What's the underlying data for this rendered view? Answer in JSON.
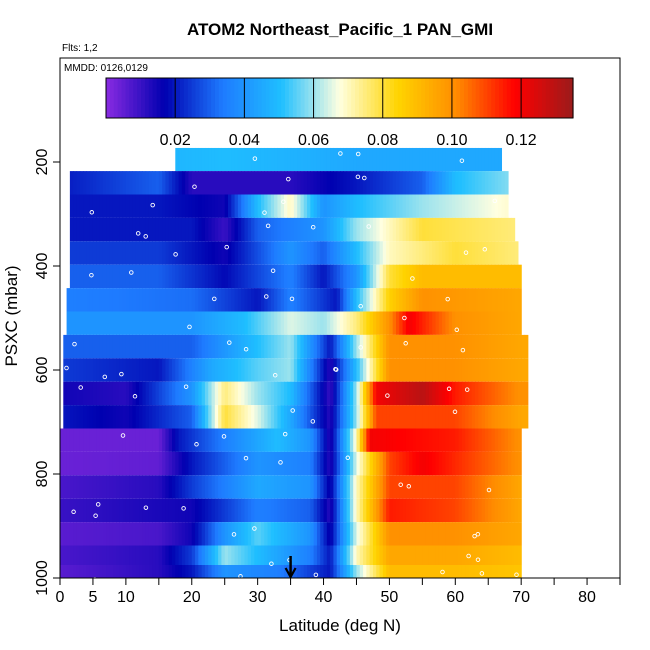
{
  "chart_data": {
    "type": "heatmap",
    "title": "ATOM2 Northeast_Pacific_1 PAN_GMI",
    "flights_label": "Flts: 1,2",
    "dates_label": "MMDD: 0126,0129",
    "xlabel": "Latitude (deg N)",
    "ylabel": "PSXC (mbar)",
    "xlim": [
      0,
      85
    ],
    "ylim": [
      1000,
      0
    ],
    "x_tick_labels": [
      "0",
      "5",
      "10",
      "20",
      "30",
      "40",
      "50",
      "60",
      "70",
      "80"
    ],
    "y_tick_labels": [
      "200",
      "400",
      "600",
      "800",
      "1000"
    ],
    "colorbar": {
      "range": [
        0,
        0.135
      ],
      "tick_labels": [
        "0.02",
        "0.04",
        "0.06",
        "0.08",
        "0.10",
        "0.12"
      ],
      "colors": [
        "#8a2be2",
        "#0000b0",
        "#1e7bff",
        "#1fbfff",
        "#ffffe0",
        "#ffd400",
        "#ff8c00",
        "#ff0000",
        "#9b1b1b"
      ]
    },
    "marker": {
      "latitude": 35,
      "symbol": "arrow-down"
    },
    "pressure_bands": [
      {
        "p": 195,
        "lat_range": [
          17.5,
          67
        ],
        "profile": [
          [
            0,
            0.045
          ],
          [
            25,
            0.05
          ],
          [
            45,
            0.045
          ],
          [
            60,
            0.045
          ],
          [
            70,
            0.045
          ]
        ]
      },
      {
        "p": 240,
        "lat_range": [
          1.5,
          68
        ],
        "profile": [
          [
            0,
            0.02
          ],
          [
            15,
            0.03
          ],
          [
            20,
            0.012
          ],
          [
            35,
            0.012
          ],
          [
            45,
            0.02
          ],
          [
            55,
            0.03
          ],
          [
            60,
            0.05
          ],
          [
            70,
            0.06
          ]
        ]
      },
      {
        "p": 285,
        "lat_range": [
          1.5,
          68
        ],
        "profile": [
          [
            0,
            0.02
          ],
          [
            15,
            0.02
          ],
          [
            25,
            0.015
          ],
          [
            30,
            0.05
          ],
          [
            35,
            0.07
          ],
          [
            40,
            0.04
          ],
          [
            45,
            0.05
          ],
          [
            55,
            0.06
          ],
          [
            70,
            0.07
          ]
        ]
      },
      {
        "p": 330,
        "lat_range": [
          1.5,
          69
        ],
        "profile": [
          [
            0,
            0.02
          ],
          [
            20,
            0.02
          ],
          [
            25,
            0.01
          ],
          [
            30,
            0.03
          ],
          [
            40,
            0.04
          ],
          [
            45,
            0.06
          ],
          [
            55,
            0.08
          ],
          [
            70,
            0.075
          ]
        ]
      },
      {
        "p": 375,
        "lat_range": [
          1.5,
          69.5
        ],
        "profile": [
          [
            0,
            0.025
          ],
          [
            15,
            0.025
          ],
          [
            25,
            0.015
          ],
          [
            35,
            0.04
          ],
          [
            40,
            0.03
          ],
          [
            45,
            0.05
          ],
          [
            50,
            0.07
          ],
          [
            60,
            0.08
          ],
          [
            70,
            0.075
          ]
        ]
      },
      {
        "p": 420,
        "lat_range": [
          1.5,
          70
        ],
        "profile": [
          [
            0,
            0.03
          ],
          [
            15,
            0.03
          ],
          [
            25,
            0.018
          ],
          [
            35,
            0.035
          ],
          [
            40,
            0.02
          ],
          [
            45,
            0.04
          ],
          [
            50,
            0.08
          ],
          [
            55,
            0.09
          ],
          [
            70,
            0.09
          ]
        ]
      },
      {
        "p": 465,
        "lat_range": [
          1,
          70
        ],
        "profile": [
          [
            0,
            0.035
          ],
          [
            20,
            0.032
          ],
          [
            30,
            0.02
          ],
          [
            35,
            0.035
          ],
          [
            42,
            0.02
          ],
          [
            45,
            0.05
          ],
          [
            50,
            0.085
          ],
          [
            55,
            0.1
          ],
          [
            70,
            0.095
          ]
        ]
      },
      {
        "p": 510,
        "lat_range": [
          1,
          70
        ],
        "profile": [
          [
            0,
            0.04
          ],
          [
            20,
            0.04
          ],
          [
            28,
            0.05
          ],
          [
            35,
            0.065
          ],
          [
            40,
            0.06
          ],
          [
            45,
            0.075
          ],
          [
            50,
            0.1
          ],
          [
            53,
            0.12
          ],
          [
            60,
            0.1
          ],
          [
            70,
            0.095
          ]
        ]
      },
      {
        "p": 555,
        "lat_range": [
          0.5,
          71
        ],
        "profile": [
          [
            0,
            0.03
          ],
          [
            20,
            0.03
          ],
          [
            27,
            0.045
          ],
          [
            35,
            0.06
          ],
          [
            41,
            0.02
          ],
          [
            45,
            0.06
          ],
          [
            50,
            0.1
          ],
          [
            60,
            0.1
          ],
          [
            70,
            0.095
          ]
        ]
      },
      {
        "p": 600,
        "lat_range": [
          0.5,
          71
        ],
        "profile": [
          [
            0,
            0.025
          ],
          [
            15,
            0.02
          ],
          [
            23,
            0.045
          ],
          [
            30,
            0.055
          ],
          [
            35,
            0.06
          ],
          [
            41,
            0.012
          ],
          [
            45,
            0.05
          ],
          [
            50,
            0.1
          ],
          [
            60,
            0.1
          ],
          [
            70,
            0.095
          ]
        ]
      },
      {
        "p": 645,
        "lat_range": [
          0.5,
          71
        ],
        "profile": [
          [
            0,
            0.015
          ],
          [
            10,
            0.012
          ],
          [
            20,
            0.04
          ],
          [
            25,
            0.075
          ],
          [
            30,
            0.06
          ],
          [
            35,
            0.05
          ],
          [
            41,
            0.01
          ],
          [
            45,
            0.06
          ],
          [
            48,
            0.12
          ],
          [
            55,
            0.13
          ],
          [
            60,
            0.115
          ],
          [
            70,
            0.1
          ]
        ]
      },
      {
        "p": 690,
        "lat_range": [
          0.5,
          71
        ],
        "profile": [
          [
            0,
            0.02
          ],
          [
            10,
            0.015
          ],
          [
            20,
            0.03
          ],
          [
            25,
            0.08
          ],
          [
            30,
            0.065
          ],
          [
            35,
            0.045
          ],
          [
            41,
            0.012
          ],
          [
            45,
            0.06
          ],
          [
            48,
            0.11
          ],
          [
            60,
            0.11
          ],
          [
            70,
            0.095
          ]
        ]
      },
      {
        "p": 735,
        "lat_range": [
          0,
          70
        ],
        "profile": [
          [
            0,
            0.004
          ],
          [
            15,
            0.004
          ],
          [
            18,
            0.02
          ],
          [
            25,
            0.035
          ],
          [
            33,
            0.05
          ],
          [
            38,
            0.04
          ],
          [
            41,
            0.012
          ],
          [
            45,
            0.07
          ],
          [
            47,
            0.12
          ],
          [
            60,
            0.115
          ],
          [
            70,
            0.1
          ]
        ]
      },
      {
        "p": 780,
        "lat_range": [
          0,
          70
        ],
        "profile": [
          [
            0,
            0.004
          ],
          [
            15,
            0.005
          ],
          [
            20,
            0.02
          ],
          [
            30,
            0.04
          ],
          [
            38,
            0.035
          ],
          [
            41,
            0.012
          ],
          [
            45,
            0.065
          ],
          [
            50,
            0.11
          ],
          [
            55,
            0.12
          ],
          [
            70,
            0.1
          ]
        ]
      },
      {
        "p": 825,
        "lat_range": [
          0,
          70
        ],
        "profile": [
          [
            0,
            0.008
          ],
          [
            15,
            0.012
          ],
          [
            20,
            0.025
          ],
          [
            30,
            0.045
          ],
          [
            38,
            0.04
          ],
          [
            41,
            0.015
          ],
          [
            45,
            0.07
          ],
          [
            50,
            0.11
          ],
          [
            60,
            0.11
          ],
          [
            70,
            0.095
          ]
        ]
      },
      {
        "p": 870,
        "lat_range": [
          0,
          70
        ],
        "profile": [
          [
            0,
            0.01
          ],
          [
            20,
            0.015
          ],
          [
            30,
            0.035
          ],
          [
            38,
            0.03
          ],
          [
            41,
            0.012
          ],
          [
            45,
            0.07
          ],
          [
            50,
            0.115
          ],
          [
            60,
            0.11
          ],
          [
            70,
            0.095
          ]
        ]
      },
      {
        "p": 915,
        "lat_range": [
          0,
          70
        ],
        "profile": [
          [
            0,
            0.006
          ],
          [
            15,
            0.008
          ],
          [
            20,
            0.015
          ],
          [
            25,
            0.04
          ],
          [
            30,
            0.055
          ],
          [
            38,
            0.04
          ],
          [
            41,
            0.015
          ],
          [
            45,
            0.065
          ],
          [
            50,
            0.1
          ],
          [
            60,
            0.1
          ],
          [
            70,
            0.095
          ]
        ]
      },
      {
        "p": 960,
        "lat_range": [
          0,
          70
        ],
        "profile": [
          [
            0,
            0.008
          ],
          [
            15,
            0.012
          ],
          [
            20,
            0.025
          ],
          [
            25,
            0.06
          ],
          [
            30,
            0.05
          ],
          [
            38,
            0.035
          ],
          [
            41,
            0.02
          ],
          [
            45,
            0.07
          ],
          [
            50,
            0.095
          ],
          [
            60,
            0.095
          ],
          [
            70,
            0.09
          ]
        ]
      },
      {
        "p": 990,
        "lat_range": [
          0,
          70
        ],
        "profile": [
          [
            0,
            0.006
          ],
          [
            15,
            0.012
          ],
          [
            20,
            0.02
          ],
          [
            25,
            0.04
          ],
          [
            33,
            0.035
          ],
          [
            41,
            0.02
          ],
          [
            45,
            0.06
          ],
          [
            50,
            0.09
          ],
          [
            60,
            0.09
          ],
          [
            70,
            0.088
          ]
        ]
      }
    ]
  }
}
